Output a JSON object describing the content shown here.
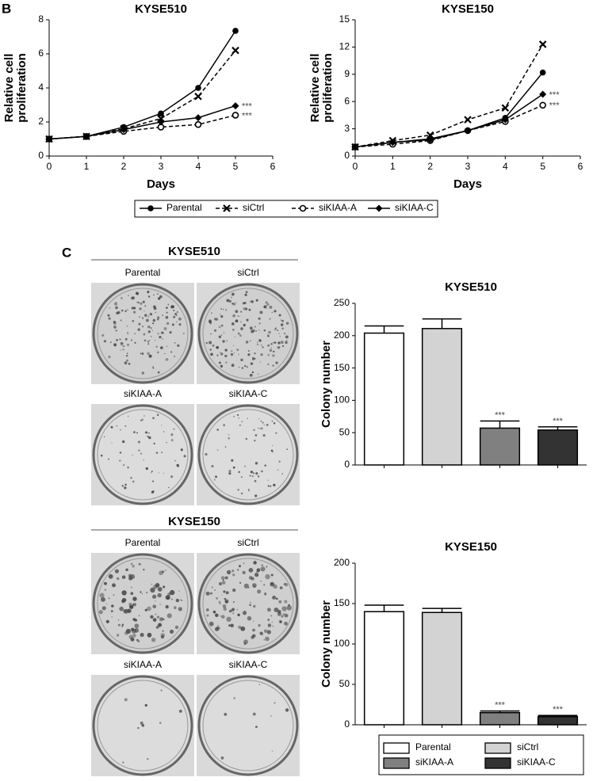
{
  "panel_labels": [
    "B",
    "C"
  ],
  "plate_sets": [
    {
      "title": "KYSE510",
      "labels": [
        "Parental",
        "siCtrl",
        "siKIAA-A",
        "siKIAA-C"
      ]
    },
    {
      "title": "KYSE150",
      "labels": [
        "Parental",
        "siCtrl",
        "siKIAA-A",
        "siKIAA-C"
      ]
    }
  ],
  "chart_data": [
    {
      "type": "line",
      "title": "KYSE510",
      "xlabel": "Days",
      "ylabel": [
        "Relative cell",
        "proliferation"
      ],
      "x": [
        0,
        1,
        2,
        3,
        4,
        5
      ],
      "xlim": [
        0,
        6
      ],
      "xticks": [
        0,
        1,
        2,
        3,
        4,
        5,
        6
      ],
      "ylim": [
        0,
        8
      ],
      "yticks": [
        0,
        2,
        4,
        6,
        8
      ],
      "series": [
        {
          "name": "Parental",
          "color": "#000000",
          "marker": "circle",
          "dashed": false,
          "values": [
            1,
            1.15,
            1.7,
            2.5,
            4.0,
            7.35
          ]
        },
        {
          "name": "siCtrl",
          "color": "#000000",
          "marker": "x",
          "dashed": true,
          "values": [
            1,
            1.15,
            1.6,
            2.2,
            3.5,
            6.2
          ]
        },
        {
          "name": "siKIAA-A",
          "color": "#000000",
          "marker": "open-circle",
          "dashed": true,
          "values": [
            1,
            1.15,
            1.45,
            1.7,
            1.85,
            2.4
          ],
          "annotation": "***"
        },
        {
          "name": "siKIAA-C",
          "color": "#000000",
          "marker": "diamond",
          "dashed": false,
          "values": [
            1,
            1.15,
            1.55,
            2.0,
            2.25,
            2.95
          ],
          "annotation": "***"
        }
      ]
    },
    {
      "type": "line",
      "title": "KYSE150",
      "xlabel": "Days",
      "ylabel": [
        "Relative cell",
        "proliferation"
      ],
      "x": [
        0,
        1,
        2,
        3,
        4,
        5
      ],
      "xlim": [
        0,
        6
      ],
      "xticks": [
        0,
        1,
        2,
        3,
        4,
        5,
        6
      ],
      "ylim": [
        0,
        15
      ],
      "yticks": [
        0,
        3,
        6,
        9,
        12,
        15
      ],
      "series": [
        {
          "name": "Parental",
          "color": "#000000",
          "marker": "circle",
          "dashed": false,
          "values": [
            1,
            1.5,
            1.9,
            2.8,
            4.2,
            9.2
          ]
        },
        {
          "name": "siCtrl",
          "color": "#000000",
          "marker": "x",
          "dashed": true,
          "values": [
            1,
            1.7,
            2.3,
            4.0,
            5.3,
            12.3
          ]
        },
        {
          "name": "siKIAA-A",
          "color": "#000000",
          "marker": "open-circle",
          "dashed": true,
          "values": [
            1,
            1.3,
            1.7,
            2.8,
            3.8,
            5.6
          ],
          "annotation": "***"
        },
        {
          "name": "siKIAA-C",
          "color": "#000000",
          "marker": "diamond",
          "dashed": false,
          "values": [
            1,
            1.5,
            1.8,
            2.8,
            4.0,
            6.8
          ],
          "annotation": "***"
        }
      ]
    },
    {
      "type": "bar",
      "title": "KYSE510",
      "ylabel": "Colony number",
      "categories": [
        "Parental",
        "siCtrl",
        "siKIAA-A",
        "siKIAA-C"
      ],
      "values": [
        204,
        211,
        57,
        54
      ],
      "errors": [
        11,
        15,
        11,
        5
      ],
      "annotations": [
        null,
        null,
        "***",
        "***"
      ],
      "colors": [
        "#ffffff",
        "#d3d3d3",
        "#808080",
        "#333333"
      ],
      "ylim": [
        0,
        250
      ],
      "yticks": [
        0,
        50,
        100,
        150,
        200,
        250
      ]
    },
    {
      "type": "bar",
      "title": "KYSE150",
      "ylabel": "Colony number",
      "categories": [
        "Parental",
        "siCtrl",
        "siKIAA-A",
        "siKIAA-C"
      ],
      "values": [
        140,
        139,
        15,
        10
      ],
      "errors": [
        8,
        5,
        2,
        1.5
      ],
      "annotations": [
        null,
        null,
        "***",
        "***"
      ],
      "colors": [
        "#ffffff",
        "#d3d3d3",
        "#808080",
        "#333333"
      ],
      "ylim": [
        0,
        200
      ],
      "yticks": [
        0,
        50,
        100,
        150,
        200
      ]
    }
  ]
}
